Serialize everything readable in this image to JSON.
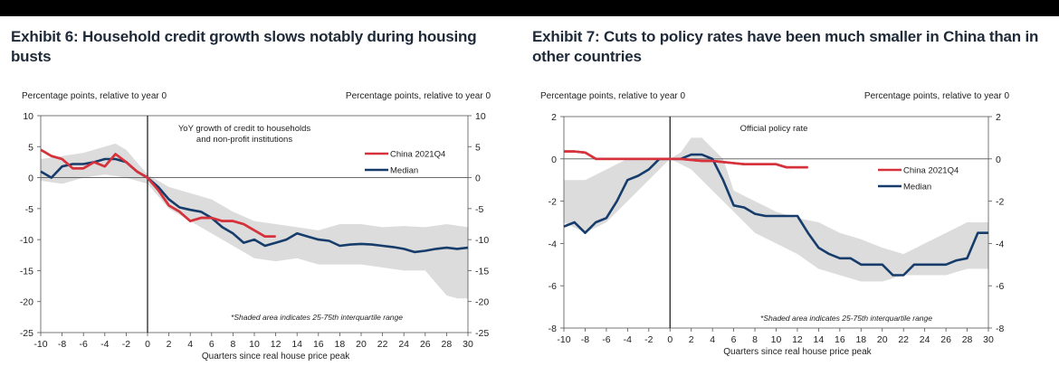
{
  "colors": {
    "china": "#d6323c",
    "median": "#163c6b",
    "band": "#dcdcdc",
    "title": "#1f2a38"
  },
  "chart_data": [
    {
      "type": "line",
      "title": "Exhibit 6: Household credit growth slows notably during housing busts",
      "ylabel_left": "Percentage points, relative to year 0",
      "ylabel_right": "Percentage points, relative to year 0",
      "xlabel": "Quarters since real house price peak",
      "annotation": "YoY growth of credit to households and non-profit institutions",
      "annotation_lines": [
        "YoY growth of credit to households",
        "and non-profit institutions"
      ],
      "note": "*Shaded area indicates 25-75th interquartile range",
      "xlim": [
        -10,
        30
      ],
      "ylim": [
        -25,
        10
      ],
      "xticks": [
        "-10",
        "-8",
        "-6",
        "-4",
        "-2",
        "0",
        "2",
        "4",
        "6",
        "8",
        "10",
        "12",
        "14",
        "16",
        "18",
        "20",
        "22",
        "24",
        "26",
        "28",
        "30"
      ],
      "yticks": [
        "10",
        "5",
        "0",
        "-5",
        "-10",
        "-15",
        "-20",
        "-25"
      ],
      "legend": [
        "China 2021Q4",
        "Median"
      ],
      "series": [
        {
          "name": "China 2021Q4",
          "x": [
            -10,
            -9,
            -8,
            -7,
            -6,
            -5,
            -4,
            -3,
            -2,
            -1,
            0,
            1,
            2,
            3,
            4,
            5,
            6,
            7,
            8,
            9,
            10,
            11,
            12
          ],
          "y": [
            4.5,
            3.5,
            3,
            1.5,
            1.5,
            2.5,
            1.8,
            3.8,
            2.5,
            1,
            0,
            -2,
            -4.5,
            -5.5,
            -7,
            -6.5,
            -6.5,
            -7,
            -7,
            -7.5,
            -8.5,
            -9.5,
            -9.5
          ]
        },
        {
          "name": "Median",
          "x": [
            -10,
            -9,
            -8,
            -7,
            -6,
            -5,
            -4,
            -3,
            -2,
            -1,
            0,
            1,
            2,
            3,
            4,
            5,
            6,
            7,
            8,
            9,
            10,
            11,
            12,
            13,
            14,
            15,
            16,
            17,
            18,
            19,
            20,
            21,
            22,
            23,
            24,
            25,
            26,
            27,
            28,
            29,
            30
          ],
          "y": [
            1,
            0,
            1.8,
            2.2,
            2.2,
            2.5,
            3,
            3,
            2.5,
            1,
            0,
            -1.5,
            -3.5,
            -4.8,
            -5.2,
            -5.5,
            -6.5,
            -8,
            -9,
            -10.5,
            -10,
            -11,
            -10.5,
            -10,
            -9,
            -9.5,
            -10,
            -10.2,
            -11,
            -10.8,
            -10.7,
            -10.8,
            -11,
            -11.2,
            -11.5,
            -12,
            -11.8,
            -11.5,
            -11.3,
            -11.5,
            -11.3
          ]
        },
        {
          "name": "Interquartile range (upper)",
          "x": [
            -10,
            -8,
            -6,
            -4,
            -3,
            -2,
            0,
            2,
            4,
            6,
            8,
            10,
            12,
            14,
            16,
            18,
            20,
            22,
            24,
            26,
            28,
            30
          ],
          "y": [
            3,
            3.5,
            4,
            5,
            5.5,
            4.5,
            0.5,
            -1.5,
            -2.5,
            -3.5,
            -5.5,
            -7,
            -7.5,
            -8,
            -8.5,
            -7.5,
            -7.5,
            -8,
            -7.8,
            -8,
            -7.5,
            -8
          ]
        },
        {
          "name": "Interquartile range (lower)",
          "x": [
            -10,
            -8,
            -6,
            -4,
            -2,
            0,
            2,
            4,
            6,
            8,
            10,
            12,
            14,
            16,
            18,
            20,
            22,
            24,
            26,
            28,
            29,
            30
          ],
          "y": [
            -0.5,
            -1,
            0,
            0.5,
            0,
            -1,
            -5,
            -7,
            -9,
            -11,
            -13,
            -13.5,
            -13,
            -14,
            -14,
            -14,
            -14.5,
            -15,
            -15,
            -19,
            -19.5,
            -19.5
          ]
        }
      ]
    },
    {
      "type": "line",
      "title": "Exhibit 7: Cuts to policy rates have been much smaller in China than in other countries",
      "ylabel_left": "Percentage points, relative to year 0",
      "ylabel_right": "Percentage points, relative to year 0",
      "xlabel": "Quarters since real house price peak",
      "annotation": "Official policy rate",
      "annotation_lines": [
        "Official policy rate"
      ],
      "note": "*Shaded area indicates 25-75th interquartile range",
      "xlim": [
        -10,
        30
      ],
      "ylim": [
        -8,
        2
      ],
      "xticks": [
        "-10",
        "-8",
        "-6",
        "-4",
        "-2",
        "0",
        "2",
        "4",
        "6",
        "8",
        "10",
        "12",
        "14",
        "16",
        "18",
        "20",
        "22",
        "24",
        "26",
        "28",
        "30"
      ],
      "yticks": [
        "2",
        "0",
        "-2",
        "-4",
        "-6",
        "-8"
      ],
      "legend": [
        "China 2021Q4",
        "Median"
      ],
      "series": [
        {
          "name": "China 2021Q4",
          "x": [
            -10,
            -9,
            -8,
            -7,
            -6,
            -5,
            -4,
            -3,
            -2,
            -1,
            0,
            1,
            2,
            3,
            4,
            5,
            6,
            7,
            8,
            9,
            10,
            11,
            12,
            13
          ],
          "y": [
            0.35,
            0.35,
            0.3,
            0,
            0,
            0,
            0,
            0,
            0,
            0,
            0,
            0,
            -0.05,
            -0.1,
            -0.1,
            -0.15,
            -0.2,
            -0.25,
            -0.25,
            -0.25,
            -0.25,
            -0.4,
            -0.4,
            -0.4
          ]
        },
        {
          "name": "Median",
          "x": [
            -10,
            -9,
            -8,
            -7,
            -6,
            -5,
            -4,
            -3,
            -2,
            -1,
            0,
            1,
            2,
            3,
            4,
            5,
            6,
            7,
            8,
            9,
            10,
            11,
            12,
            13,
            14,
            15,
            16,
            17,
            18,
            19,
            20,
            21,
            22,
            23,
            24,
            25,
            26,
            27,
            28,
            29,
            30
          ],
          "y": [
            -3.2,
            -3,
            -3.5,
            -3,
            -2.8,
            -2,
            -1,
            -0.8,
            -0.5,
            0,
            0,
            0,
            0.2,
            0.2,
            0,
            -1,
            -2.2,
            -2.3,
            -2.6,
            -2.7,
            -2.7,
            -2.7,
            -2.7,
            -3.5,
            -4.2,
            -4.5,
            -4.7,
            -4.7,
            -5,
            -5,
            -5,
            -5.5,
            -5.5,
            -5,
            -5,
            -5,
            -5,
            -4.8,
            -4.7,
            -3.5,
            -3.5
          ]
        },
        {
          "name": "Interquartile range (upper)",
          "x": [
            -10,
            -8,
            -6,
            -4,
            -2,
            0,
            1,
            2,
            3,
            4,
            5,
            6,
            8,
            10,
            12,
            14,
            16,
            18,
            20,
            22,
            24,
            26,
            28,
            30
          ],
          "y": [
            -1,
            -1,
            -0.5,
            0,
            0,
            0,
            0.3,
            1,
            1,
            0.5,
            0,
            -1.5,
            -2,
            -2.5,
            -2.8,
            -3,
            -3.5,
            -3.8,
            -4.2,
            -4.5,
            -4,
            -3.5,
            -3,
            -3
          ]
        },
        {
          "name": "Interquartile range (lower)",
          "x": [
            -10,
            -8,
            -6,
            -4,
            -2,
            0,
            2,
            4,
            6,
            8,
            10,
            12,
            14,
            16,
            18,
            20,
            22,
            24,
            26,
            28,
            30
          ],
          "y": [
            -3,
            -3.5,
            -3,
            -2,
            -1,
            0,
            -0.5,
            -1.5,
            -2.5,
            -3.5,
            -4,
            -4.5,
            -5.2,
            -5.5,
            -5.8,
            -5.8,
            -5.5,
            -5.5,
            -5.5,
            -5.2,
            -5.2
          ]
        }
      ]
    }
  ]
}
